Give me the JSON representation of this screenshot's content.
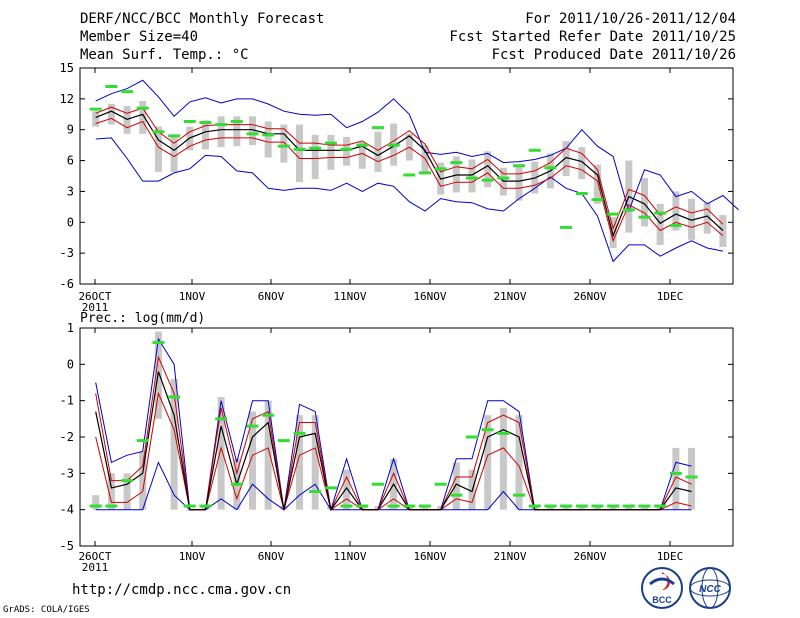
{
  "header": {
    "title": "DERF/NCC/BCC Monthly Forecast",
    "member_size": "Member Size=40",
    "variable": "Mean Surf. Temp.: °C",
    "period": "For 2011/10/26-2011/12/04",
    "refer_date": "Fcst Started Refer Date 2011/10/25",
    "produced_date": "Fcst Produced Date 2011/10/26"
  },
  "footer": {
    "url": "http://cmdp.ncc.cma.gov.cn",
    "grads": "GrADS: COLA/IGES",
    "logo_bcc": "BCC",
    "logo_ncc": "NCC"
  },
  "colors": {
    "spread_bar": "#c8c8c8",
    "mean": "#000000",
    "stdev": "#d00000",
    "extremes": "#0000cc",
    "observed": "#33dd33"
  },
  "chart_data": [
    {
      "type": "line",
      "title": "Mean Surf. Temp.: °C",
      "x_tick_labels": [
        "26OCT",
        "1NOV",
        "6NOV",
        "11NOV",
        "16NOV",
        "21NOV",
        "26NOV",
        "1DEC"
      ],
      "x_tick_year": "2011",
      "ylim": [
        -6,
        15
      ],
      "y_ticks": [
        "15",
        "12",
        "9",
        "6",
        "3",
        "0",
        "-3",
        "-6"
      ],
      "y_tick_values": [
        15,
        12,
        9,
        6,
        3,
        0,
        -3,
        -6
      ],
      "series": [
        {
          "name": "max",
          "values": [
            11.8,
            12.5,
            13,
            13.8,
            12.2,
            10.3,
            11.7,
            12.1,
            11.6,
            12,
            12,
            11.5,
            10.8,
            10.5,
            10.4,
            10.5,
            9.2,
            9.8,
            10.7,
            12,
            10.5,
            6.8,
            6.6,
            6.8,
            6.4,
            6.7,
            5.8,
            5.9,
            6.1,
            6.5,
            7.2,
            9,
            7.4,
            6.4,
            1.1,
            5.1,
            4.6,
            2.5,
            3,
            1.8,
            2.6,
            1.2
          ]
        },
        {
          "name": "mean_plus_sd",
          "values": [
            10.6,
            11.2,
            10.6,
            11.1,
            8.8,
            7.7,
            8.8,
            9.4,
            9.5,
            9.5,
            9.5,
            9.1,
            9.1,
            7.7,
            7.7,
            7.5,
            7.5,
            7.9,
            7,
            7.9,
            8.9,
            7.6,
            4.9,
            5.4,
            5.2,
            6.1,
            4.7,
            4.7,
            5,
            5.8,
            7.2,
            6.7,
            5.1,
            -0.6,
            3.2,
            2.6,
            0.7,
            1.5,
            0.9,
            1.3,
            -0.2
          ]
        },
        {
          "name": "mean",
          "values": [
            10.2,
            10.8,
            10,
            10.5,
            8,
            7,
            8.2,
            8.8,
            9,
            9,
            9,
            8.6,
            8.6,
            7,
            7,
            7,
            7,
            7.4,
            6.5,
            7.4,
            8.4,
            7,
            4.2,
            4.6,
            4.6,
            5.5,
            4,
            4,
            4.3,
            5,
            6.3,
            5.9,
            4.6,
            -1.3,
            2.5,
            1.8,
            -0.1,
            0.8,
            0.2,
            0.6,
            -0.8
          ]
        },
        {
          "name": "mean_minus_sd",
          "values": [
            9.6,
            10.1,
            9.2,
            9.8,
            7.3,
            6.4,
            7.4,
            8,
            8.2,
            8.2,
            8.2,
            7.8,
            7.8,
            6.2,
            6.2,
            6.3,
            6.3,
            6.7,
            5.9,
            6.5,
            7.3,
            6.2,
            3.5,
            3.9,
            3.9,
            4.8,
            3.3,
            3.3,
            3.6,
            4.3,
            5.5,
            5.1,
            4,
            -1.8,
            1.7,
            0.9,
            -0.8,
            0,
            -0.5,
            0,
            -1.3
          ]
        },
        {
          "name": "min",
          "values": [
            8.1,
            8.2,
            6.2,
            4,
            4,
            4.8,
            5.2,
            6.5,
            6.4,
            5,
            4.8,
            3.3,
            3.1,
            3.3,
            3.3,
            3.1,
            3.8,
            3,
            3.8,
            3.5,
            2,
            1.1,
            2.3,
            2,
            1.9,
            1.3,
            1.1,
            2.3,
            3.3,
            4.4,
            3.3,
            2.8,
            0.6,
            -3.8,
            -2.2,
            -2.2,
            -3.3,
            -2.5,
            -1.8,
            -2.5,
            -2.8
          ]
        },
        {
          "name": "observed",
          "values": [
            11,
            13.2,
            12.7,
            11.1,
            8.8,
            8.4,
            9.8,
            9.7,
            9.5,
            9.8,
            8.6,
            8.5,
            7.4,
            7.1,
            7.2,
            7.7,
            7.1,
            7.5,
            9.2,
            7.5,
            4.6,
            4.8,
            5.2,
            5.8,
            4.3,
            4.1,
            4.3,
            5.5,
            7,
            5.3,
            -0.5,
            2.8,
            2.2,
            0.8,
            1.2,
            0.5,
            0.9,
            -0.3
          ]
        },
        {
          "name": "spread_high",
          "values": [
            10.8,
            11.5,
            11.3,
            11.8,
            9.3,
            8.3,
            9.3,
            9.9,
            10.3,
            10.3,
            10.3,
            9.8,
            9.5,
            9.5,
            8.5,
            8.5,
            8.3,
            7.8,
            8.8,
            9.6,
            8.6,
            7.5,
            5.8,
            6.4,
            6.1,
            6.9,
            5.3,
            5.6,
            5.9,
            6.7,
            7.9,
            7.3,
            5.6,
            0.5,
            6,
            4.3,
            1.8,
            3,
            2.3,
            1.9,
            0.7
          ]
        },
        {
          "name": "spread_low",
          "values": [
            9.3,
            9.5,
            8.6,
            8.6,
            4.9,
            4.9,
            7,
            7.1,
            7.3,
            7.4,
            7.5,
            6.3,
            5.8,
            3.9,
            4.2,
            5.1,
            5.5,
            5.2,
            4.9,
            5.5,
            6,
            4.8,
            2.7,
            2.9,
            2.9,
            3.4,
            2.6,
            2.1,
            2.8,
            3.3,
            4.5,
            4.2,
            1.8,
            -2.5,
            -1,
            -0.4,
            -2.2,
            -0.8,
            -1.7,
            -1.1,
            -2.4
          ]
        }
      ]
    },
    {
      "type": "line",
      "title": "Prec.: log(mm/d)",
      "x_tick_labels": [
        "26OCT",
        "1NOV",
        "6NOV",
        "11NOV",
        "16NOV",
        "21NOV",
        "26NOV",
        "1DEC"
      ],
      "x_tick_year": "2011",
      "ylim": [
        -5,
        1
      ],
      "y_ticks": [
        "1",
        "0",
        "-1",
        "-2",
        "-3",
        "-4",
        "-5"
      ],
      "y_tick_values": [
        1,
        0,
        -1,
        -2,
        -3,
        -4,
        -5
      ],
      "series": [
        {
          "name": "max",
          "values": [
            -0.5,
            -2.7,
            -2.5,
            -2.4,
            0.7,
            0,
            -4,
            -4,
            -1,
            -2.7,
            -1,
            -1,
            -4,
            -1.1,
            -1.3,
            -4,
            -2.6,
            -4,
            -4,
            -2.6,
            -4,
            -4,
            -4,
            -2.6,
            -2.6,
            -1,
            -1,
            -1.3,
            -4,
            -4,
            -4,
            -4,
            -4,
            -4,
            -4,
            -4,
            -4,
            -2.7,
            -2.8
          ]
        },
        {
          "name": "mean_plus_sd",
          "values": [
            -0.8,
            -3.2,
            -3.2,
            -2.8,
            0.2,
            -0.8,
            -4,
            -4,
            -1.2,
            -3,
            -1.5,
            -1.3,
            -4,
            -1.6,
            -1.6,
            -4,
            -3.1,
            -4,
            -4,
            -3,
            -4,
            -4,
            -4,
            -3.1,
            -3.1,
            -1.6,
            -1.4,
            -1.6,
            -4,
            -4,
            -4,
            -4,
            -4,
            -4,
            -4,
            -4,
            -4,
            -3.1,
            -3.3
          ]
        },
        {
          "name": "mean",
          "values": [
            -1.3,
            -3.4,
            -3.3,
            -3,
            -0.2,
            -1.4,
            -4,
            -4,
            -1.7,
            -3.3,
            -2,
            -1.6,
            -4,
            -2,
            -1.9,
            -4,
            -3.4,
            -4,
            -4,
            -3.3,
            -4,
            -4,
            -4,
            -3.3,
            -3.5,
            -2,
            -1.8,
            -2,
            -4,
            -4,
            -4,
            -4,
            -4,
            -4,
            -4,
            -4,
            -4,
            -3.4,
            -3.5
          ]
        },
        {
          "name": "mean_minus_sd",
          "values": [
            -2,
            -3.8,
            -3.8,
            -3.5,
            -0.8,
            -1.8,
            -4,
            -4,
            -2.3,
            -3.7,
            -2.5,
            -2.3,
            -4,
            -2.5,
            -2.3,
            -4,
            -3.7,
            -4,
            -4,
            -3.7,
            -4,
            -4,
            -4,
            -3.7,
            -3.8,
            -2.5,
            -2.3,
            -2.8,
            -4,
            -4,
            -4,
            -4,
            -4,
            -4,
            -4,
            -4,
            -4,
            -3.8,
            -3.9
          ]
        },
        {
          "name": "min",
          "values": [
            -4,
            -4,
            -4,
            -4,
            -2.7,
            -3.6,
            -4,
            -4,
            -3.7,
            -4,
            -3.3,
            -3.7,
            -4,
            -3.6,
            -3.3,
            -4,
            -4,
            -4,
            -4,
            -4,
            -4,
            -4,
            -4,
            -4,
            -4,
            -4,
            -3.5,
            -4,
            -4,
            -4,
            -4,
            -4,
            -4,
            -4,
            -4,
            -4,
            -4,
            -4,
            -4
          ]
        },
        {
          "name": "observed",
          "values": [
            -3.9,
            -3.9,
            -3.2,
            -2.1,
            0.6,
            -0.9,
            -3.9,
            -3.9,
            -1.5,
            -3.3,
            -1.7,
            -1.4,
            -2.1,
            -1.9,
            -3.5,
            -3.4,
            -3.9,
            -3.9,
            -3.3,
            -3.9,
            -3.9,
            -3.9,
            -3.3,
            -3.6,
            -2,
            -1.8,
            -1.9,
            -3.6,
            -3.9,
            -3.9,
            -3.9,
            -3.9,
            -3.9,
            -3.9,
            -3.9,
            -3.9,
            -3.9,
            -3,
            -3.1
          ]
        },
        {
          "name": "spread_high",
          "values": [
            -3.6,
            -3,
            -3,
            -2.4,
            0.9,
            -0.4,
            -4,
            -3.9,
            -0.9,
            -2.6,
            -1.3,
            -1,
            -3.9,
            -1.4,
            -1.4,
            -3.9,
            -2.9,
            -3.9,
            -3.9,
            -2.6,
            -3.9,
            -3.9,
            -3.9,
            -2.7,
            -2.9,
            -1.4,
            -1.2,
            -1.4,
            -3.9,
            -3.9,
            -3.9,
            -3.9,
            -3.9,
            -3.9,
            -3.9,
            -3.9,
            -3.9,
            -2.3,
            -2.3
          ]
        },
        {
          "name": "spread_low",
          "values": [
            -4,
            -4,
            -4,
            -4,
            -1.5,
            -4,
            -4,
            -4,
            -4,
            -4,
            -4,
            -4,
            -4,
            -4,
            -4,
            -4,
            -4,
            -4,
            -4,
            -4,
            -4,
            -4,
            -4,
            -4,
            -4,
            -4,
            -4,
            -4,
            -4,
            -4,
            -4,
            -4,
            -4,
            -4,
            -4,
            -4,
            -4,
            -4,
            -4
          ]
        }
      ]
    }
  ]
}
